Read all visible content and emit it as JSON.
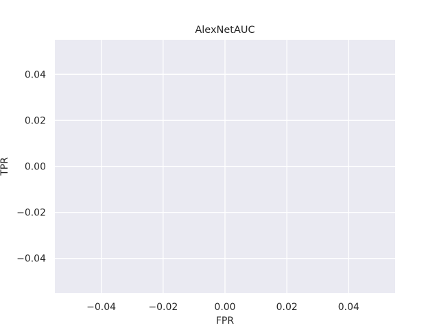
{
  "chart_data": {
    "type": "line",
    "title": "AlexNetAUC",
    "xlabel": "FPR",
    "ylabel": "TPR",
    "xlim": [
      -0.055,
      0.055
    ],
    "ylim": [
      -0.055,
      0.055
    ],
    "x_ticks": [
      -0.04,
      -0.02,
      0.0,
      0.02,
      0.04
    ],
    "x_tick_labels": [
      "−0.04",
      "−0.02",
      "0.00",
      "0.02",
      "0.04"
    ],
    "y_ticks": [
      -0.04,
      -0.02,
      0.0,
      0.02,
      0.04
    ],
    "y_tick_labels": [
      "−0.04",
      "−0.02",
      "0.00",
      "0.02",
      "0.04"
    ],
    "grid": true,
    "series": [],
    "colors": {
      "plot_background": "#eaeaf2",
      "grid": "#ffffff",
      "text": "#262626",
      "figure_background": "#ffffff"
    }
  }
}
